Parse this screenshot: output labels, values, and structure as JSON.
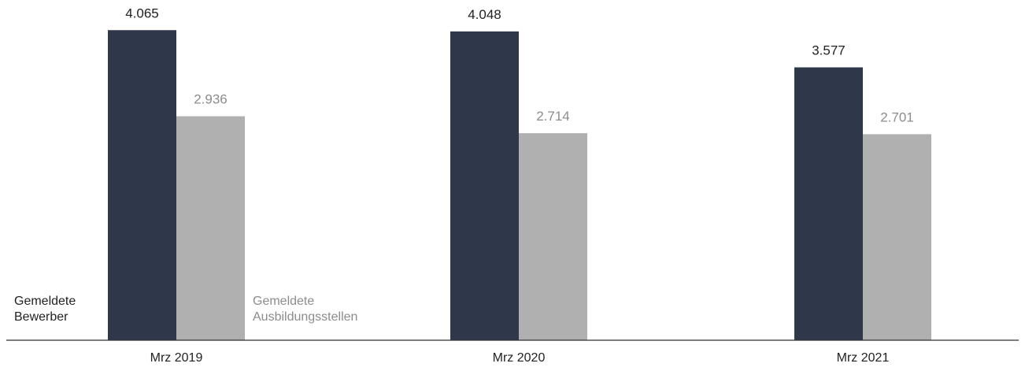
{
  "chart_data": {
    "type": "bar",
    "categories": [
      "Mrz 2019",
      "Mrz 2020",
      "Mrz 2021"
    ],
    "series": [
      {
        "name": "Gemeldete Bewerber",
        "label_lines": [
          "Gemeldete",
          "Bewerber"
        ],
        "color": "#2f374b",
        "label_color": "#222222",
        "values": [
          4065,
          4048,
          3577
        ]
      },
      {
        "name": "Gemeldete Ausbildungsstellen",
        "label_lines": [
          "Gemeldete",
          "Ausbildungsstellen"
        ],
        "color": "#b0b0b0",
        "label_color": "#8c8c8c",
        "values": [
          2936,
          2714,
          2701
        ]
      }
    ],
    "value_labels": [
      [
        "4.065",
        "4.048",
        "3.577"
      ],
      [
        "2.936",
        "2.714",
        "2.701"
      ]
    ],
    "ylim": [
      0,
      4460
    ],
    "grid": false,
    "legend": "inside-bars-first-group"
  }
}
